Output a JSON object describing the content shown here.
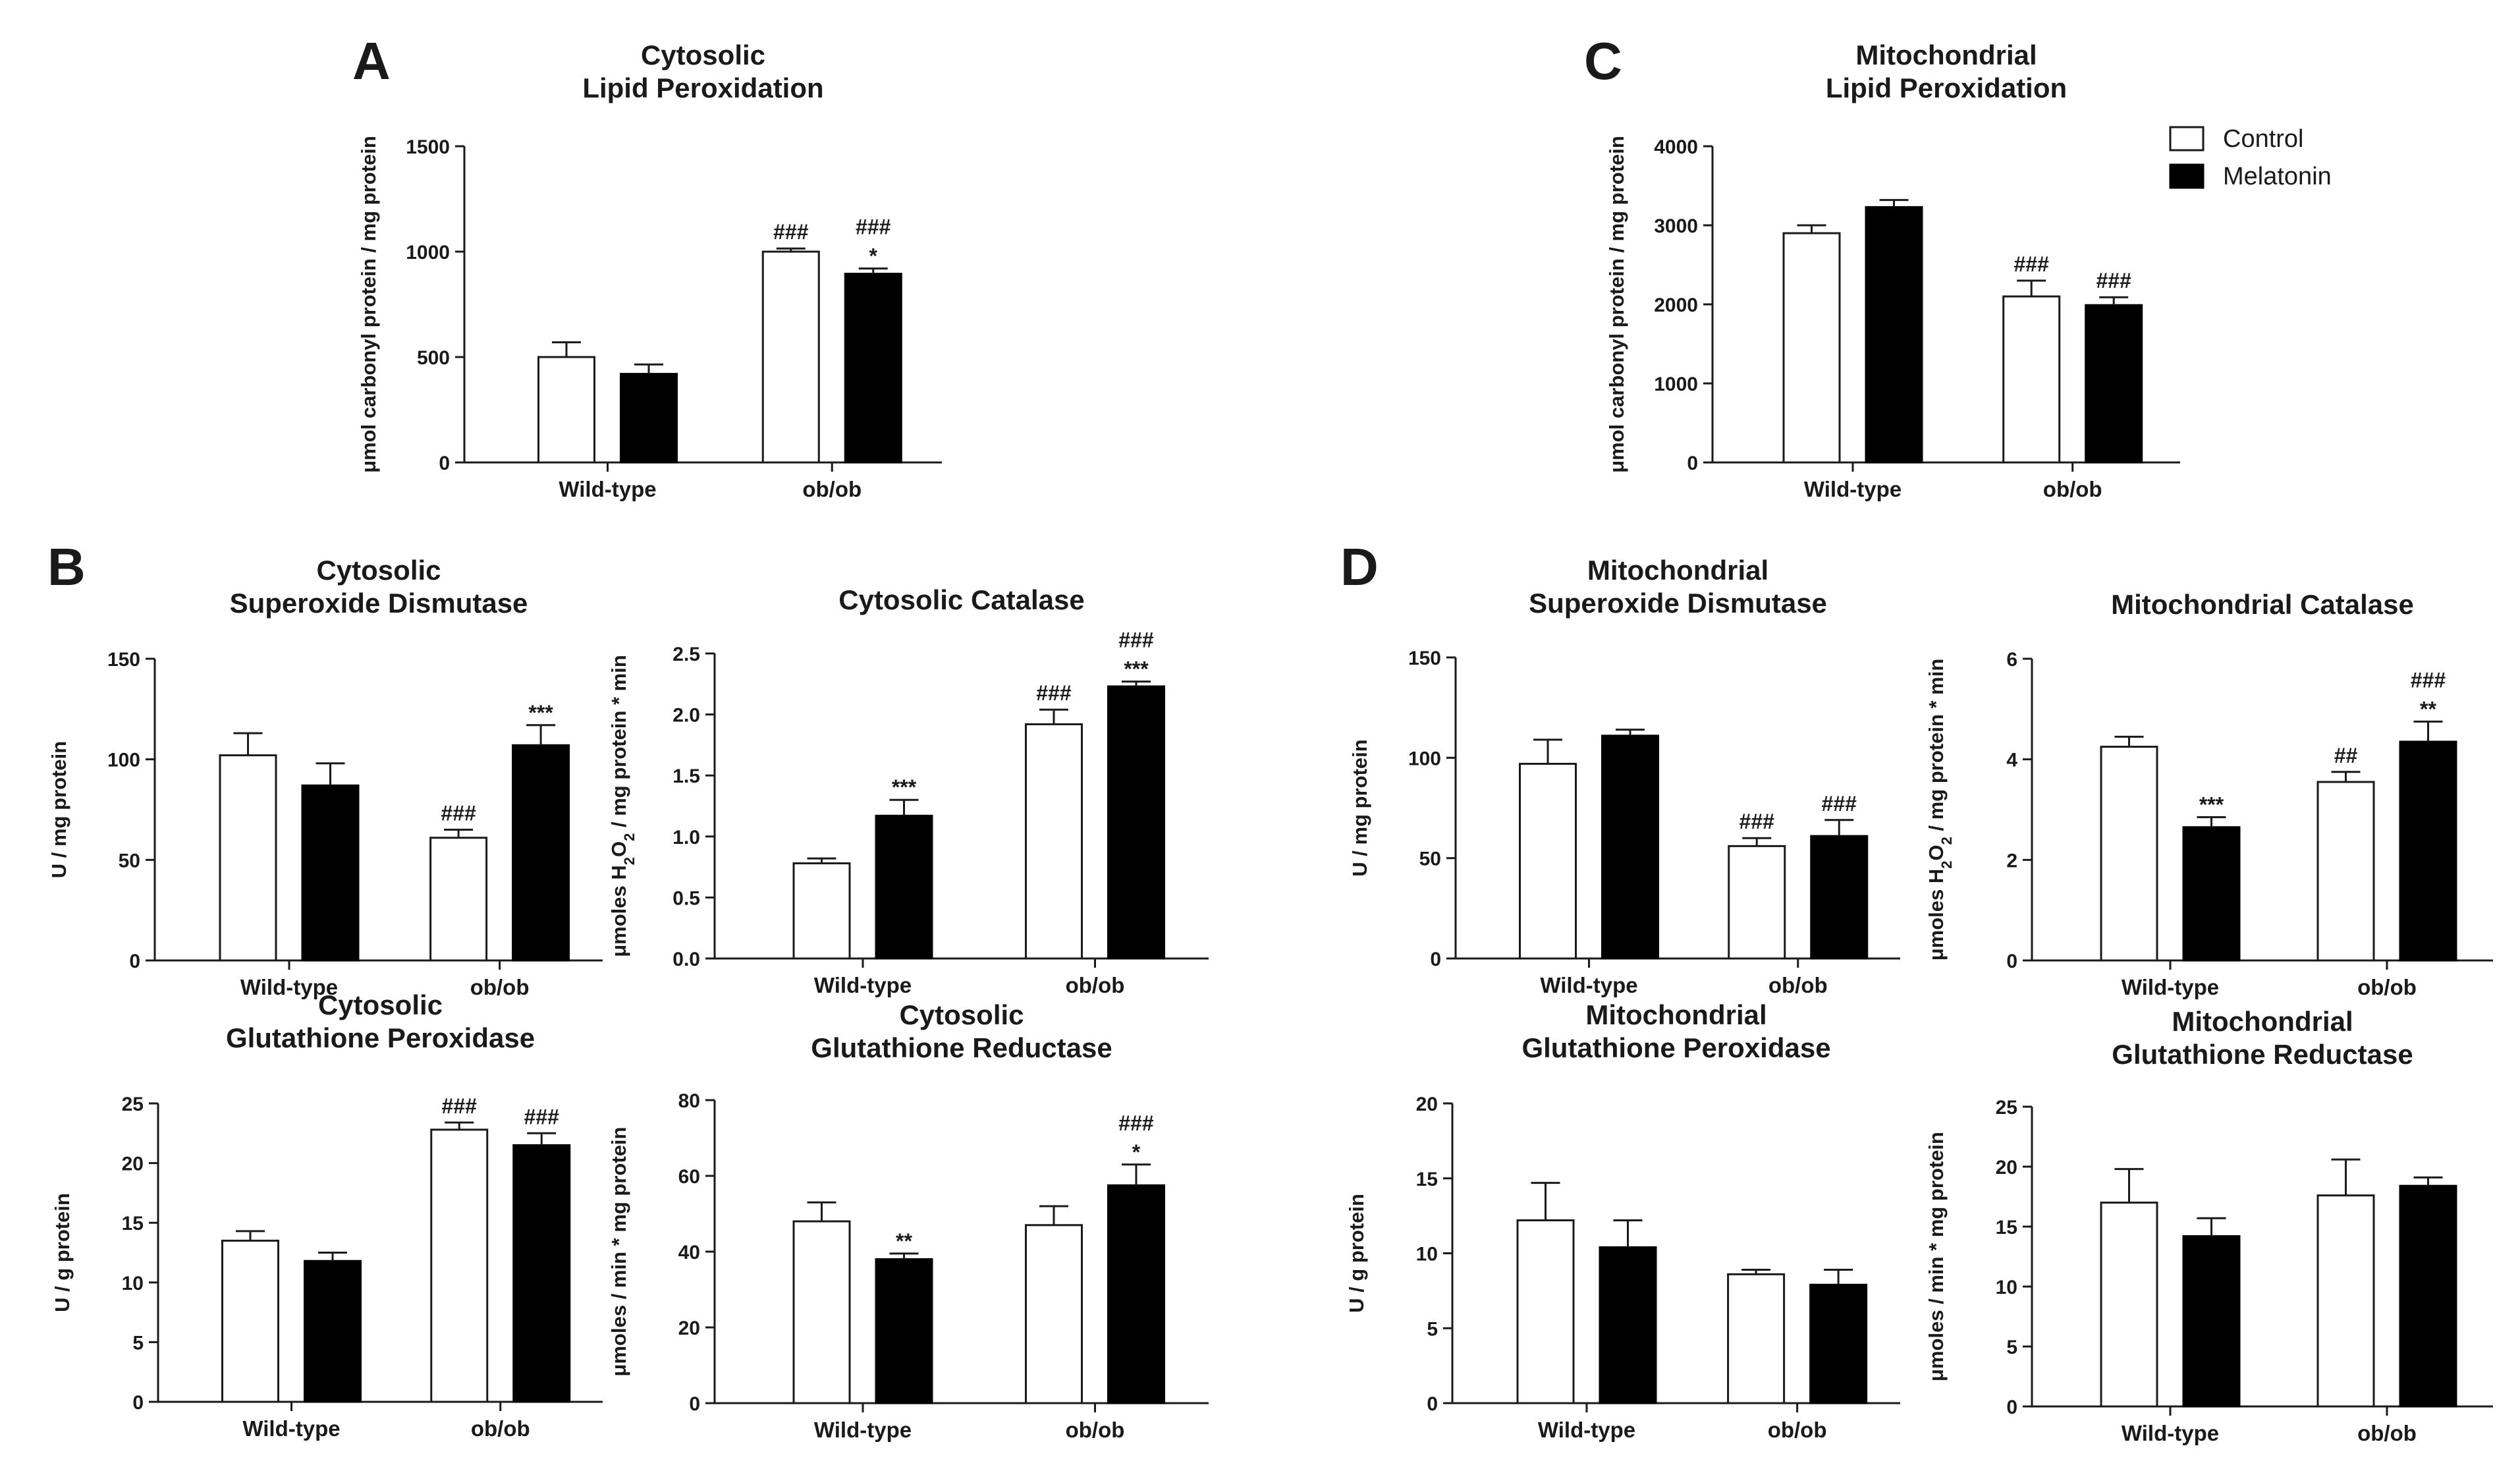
{
  "panel_letters": {
    "A": "A",
    "B": "B",
    "C": "C",
    "D": "D"
  },
  "legend": {
    "control": "Control",
    "melatonin": "Melatonin"
  },
  "colors": {
    "control": "#ffffff",
    "melatonin": "#000000",
    "stroke": "#1a1a1a"
  },
  "chart_data": [
    {
      "id": "cyto-lipid",
      "type": "bar",
      "title": [
        "Cytosolic",
        "Lipid Peroxidation"
      ],
      "ylabel": "μmol carbonyl protein / mg protein",
      "categories": [
        "Wild-type",
        "ob/ob"
      ],
      "ylim": [
        0,
        1500
      ],
      "ticks": [
        0,
        500,
        1000,
        1500
      ],
      "decimals": 0,
      "series": [
        {
          "name": "Control",
          "values": [
            500,
            1000
          ],
          "errors": [
            70,
            15
          ]
        },
        {
          "name": "Melatonin",
          "values": [
            420,
            895
          ],
          "errors": [
            45,
            25
          ]
        }
      ],
      "annotations": [
        [
          [
            "",
            ""
          ],
          [
            "###",
            ""
          ]
        ],
        [
          [
            "",
            ""
          ],
          [
            "###",
            "*"
          ]
        ]
      ]
    },
    {
      "id": "mito-lipid",
      "type": "bar",
      "title": [
        "Mitochondrial",
        "Lipid Peroxidation"
      ],
      "ylabel": "μmol carbonyl protein / mg protein",
      "categories": [
        "Wild-type",
        "ob/ob"
      ],
      "ylim": [
        0,
        4000
      ],
      "ticks": [
        0,
        1000,
        2000,
        3000,
        4000
      ],
      "decimals": 0,
      "series": [
        {
          "name": "Control",
          "values": [
            2900,
            2100
          ],
          "errors": [
            100,
            200
          ]
        },
        {
          "name": "Melatonin",
          "values": [
            3230,
            1990
          ],
          "errors": [
            90,
            100
          ]
        }
      ],
      "annotations": [
        [
          [
            "",
            ""
          ],
          [
            "###",
            ""
          ]
        ],
        [
          [
            "",
            ""
          ],
          [
            "###",
            ""
          ]
        ]
      ]
    },
    {
      "id": "cyto-sod",
      "type": "bar",
      "title": [
        "Cytosolic",
        "Superoxide Dismutase"
      ],
      "ylabel": "U / mg protein",
      "categories": [
        "Wild-type",
        "ob/ob"
      ],
      "ylim": [
        0,
        150
      ],
      "ticks": [
        0,
        50,
        100,
        150
      ],
      "decimals": 0,
      "series": [
        {
          "name": "Control",
          "values": [
            102,
            61
          ],
          "errors": [
            11,
            4
          ]
        },
        {
          "name": "Melatonin",
          "values": [
            87,
            107
          ],
          "errors": [
            11,
            10
          ]
        }
      ],
      "annotations": [
        [
          [
            "",
            ""
          ],
          [
            "###",
            ""
          ]
        ],
        [
          [
            "",
            ""
          ],
          [
            "",
            "***"
          ]
        ]
      ]
    },
    {
      "id": "cyto-cat",
      "type": "bar",
      "title": [
        "Cytosolic Catalase"
      ],
      "ylabel": "μmoles H2O2 / mg protein * min",
      "ylabel_parts": [
        "μmoles H",
        "2",
        "O",
        "2",
        " / mg protein * min"
      ],
      "categories": [
        "Wild-type",
        "ob/ob"
      ],
      "ylim": [
        0,
        2.5
      ],
      "ticks": [
        0,
        0.5,
        1.0,
        1.5,
        2.0,
        2.5
      ],
      "decimals": 1,
      "series": [
        {
          "name": "Control",
          "values": [
            0.78,
            1.92
          ],
          "errors": [
            0.04,
            0.12
          ]
        },
        {
          "name": "Melatonin",
          "values": [
            1.17,
            2.23
          ],
          "errors": [
            0.13,
            0.04
          ]
        }
      ],
      "annotations": [
        [
          [
            "",
            ""
          ],
          [
            "###",
            ""
          ]
        ],
        [
          [
            "",
            "***"
          ],
          [
            "###",
            "***"
          ]
        ]
      ]
    },
    {
      "id": "mito-sod",
      "type": "bar",
      "title": [
        "Mitochondrial",
        "Superoxide Dismutase"
      ],
      "ylabel": "U / mg protein",
      "categories": [
        "Wild-type",
        "ob/ob"
      ],
      "ylim": [
        0,
        150
      ],
      "ticks": [
        0,
        50,
        100,
        150
      ],
      "decimals": 0,
      "series": [
        {
          "name": "Control",
          "values": [
            97,
            56
          ],
          "errors": [
            12,
            4
          ]
        },
        {
          "name": "Melatonin",
          "values": [
            111,
            61
          ],
          "errors": [
            3,
            8
          ]
        }
      ],
      "annotations": [
        [
          [
            "",
            ""
          ],
          [
            "###",
            ""
          ]
        ],
        [
          [
            "",
            ""
          ],
          [
            "###",
            ""
          ]
        ]
      ]
    },
    {
      "id": "mito-cat",
      "type": "bar",
      "title": [
        "Mitochondrial Catalase"
      ],
      "ylabel": "μmoles H2O2 / mg protein * min",
      "ylabel_parts": [
        "μmoles H",
        "2",
        "O",
        "2",
        " / mg protein * min"
      ],
      "categories": [
        "Wild-type",
        "ob/ob"
      ],
      "ylim": [
        0,
        6
      ],
      "ticks": [
        0,
        2,
        4,
        6
      ],
      "decimals": 0,
      "series": [
        {
          "name": "Control",
          "values": [
            4.25,
            3.55
          ],
          "errors": [
            0.2,
            0.2
          ]
        },
        {
          "name": "Melatonin",
          "values": [
            2.65,
            4.35
          ],
          "errors": [
            0.2,
            0.4
          ]
        }
      ],
      "annotations": [
        [
          [
            "",
            ""
          ],
          [
            "##",
            ""
          ]
        ],
        [
          [
            "",
            "***"
          ],
          [
            "###",
            "**"
          ]
        ]
      ]
    },
    {
      "id": "cyto-gpx",
      "type": "bar",
      "title": [
        "Cytosolic",
        "Glutathione Peroxidase"
      ],
      "ylabel": "U / g protein",
      "categories": [
        "Wild-type",
        "ob/ob"
      ],
      "ylim": [
        0,
        25
      ],
      "ticks": [
        0,
        5,
        10,
        15,
        20,
        25
      ],
      "decimals": 0,
      "series": [
        {
          "name": "Control",
          "values": [
            13.5,
            22.8
          ],
          "errors": [
            0.8,
            0.6
          ]
        },
        {
          "name": "Melatonin",
          "values": [
            11.8,
            21.5
          ],
          "errors": [
            0.7,
            1.0
          ]
        }
      ],
      "annotations": [
        [
          [
            "",
            ""
          ],
          [
            "###",
            ""
          ]
        ],
        [
          [
            "",
            ""
          ],
          [
            "###",
            ""
          ]
        ]
      ]
    },
    {
      "id": "cyto-gr",
      "type": "bar",
      "title": [
        "Cytosolic",
        "Glutathione Reductase"
      ],
      "ylabel": "μmoles / min * mg protein",
      "categories": [
        "Wild-type",
        "ob/ob"
      ],
      "ylim": [
        0,
        80
      ],
      "ticks": [
        0,
        20,
        40,
        60,
        80
      ],
      "decimals": 0,
      "series": [
        {
          "name": "Control",
          "values": [
            48,
            47
          ],
          "errors": [
            5,
            5
          ]
        },
        {
          "name": "Melatonin",
          "values": [
            38,
            57.5
          ],
          "errors": [
            1.5,
            5.5
          ]
        }
      ],
      "annotations": [
        [
          [
            "",
            ""
          ],
          [
            "",
            ""
          ]
        ],
        [
          [
            "",
            "**"
          ],
          [
            "###",
            "*"
          ]
        ]
      ]
    },
    {
      "id": "mito-gpx",
      "type": "bar",
      "title": [
        "Mitochondrial",
        "Glutathione Peroxidase"
      ],
      "ylabel": "U / g protein",
      "categories": [
        "Wild-type",
        "ob/ob"
      ],
      "ylim": [
        0,
        20
      ],
      "ticks": [
        0,
        5,
        10,
        15,
        20
      ],
      "decimals": 0,
      "series": [
        {
          "name": "Control",
          "values": [
            12.2,
            8.6
          ],
          "errors": [
            2.5,
            0.3
          ]
        },
        {
          "name": "Melatonin",
          "values": [
            10.4,
            7.9
          ],
          "errors": [
            1.8,
            1.0
          ]
        }
      ],
      "annotations": [
        [
          [
            "",
            ""
          ],
          [
            "",
            ""
          ]
        ],
        [
          [
            "",
            ""
          ],
          [
            "",
            ""
          ]
        ]
      ]
    },
    {
      "id": "mito-gr",
      "type": "bar",
      "title": [
        "Mitochondrial",
        "Glutathione Reductase"
      ],
      "ylabel": "μmoles / min * mg protein",
      "categories": [
        "Wild-type",
        "ob/ob"
      ],
      "ylim": [
        0,
        25
      ],
      "ticks": [
        0,
        5,
        10,
        15,
        20,
        25
      ],
      "decimals": 0,
      "series": [
        {
          "name": "Control",
          "values": [
            17.0,
            17.6
          ],
          "errors": [
            2.8,
            3.0
          ]
        },
        {
          "name": "Melatonin",
          "values": [
            14.2,
            18.4
          ],
          "errors": [
            1.5,
            0.7
          ]
        }
      ],
      "annotations": [
        [
          [
            "",
            ""
          ],
          [
            "",
            ""
          ]
        ],
        [
          [
            "",
            ""
          ],
          [
            "",
            ""
          ]
        ]
      ]
    }
  ]
}
